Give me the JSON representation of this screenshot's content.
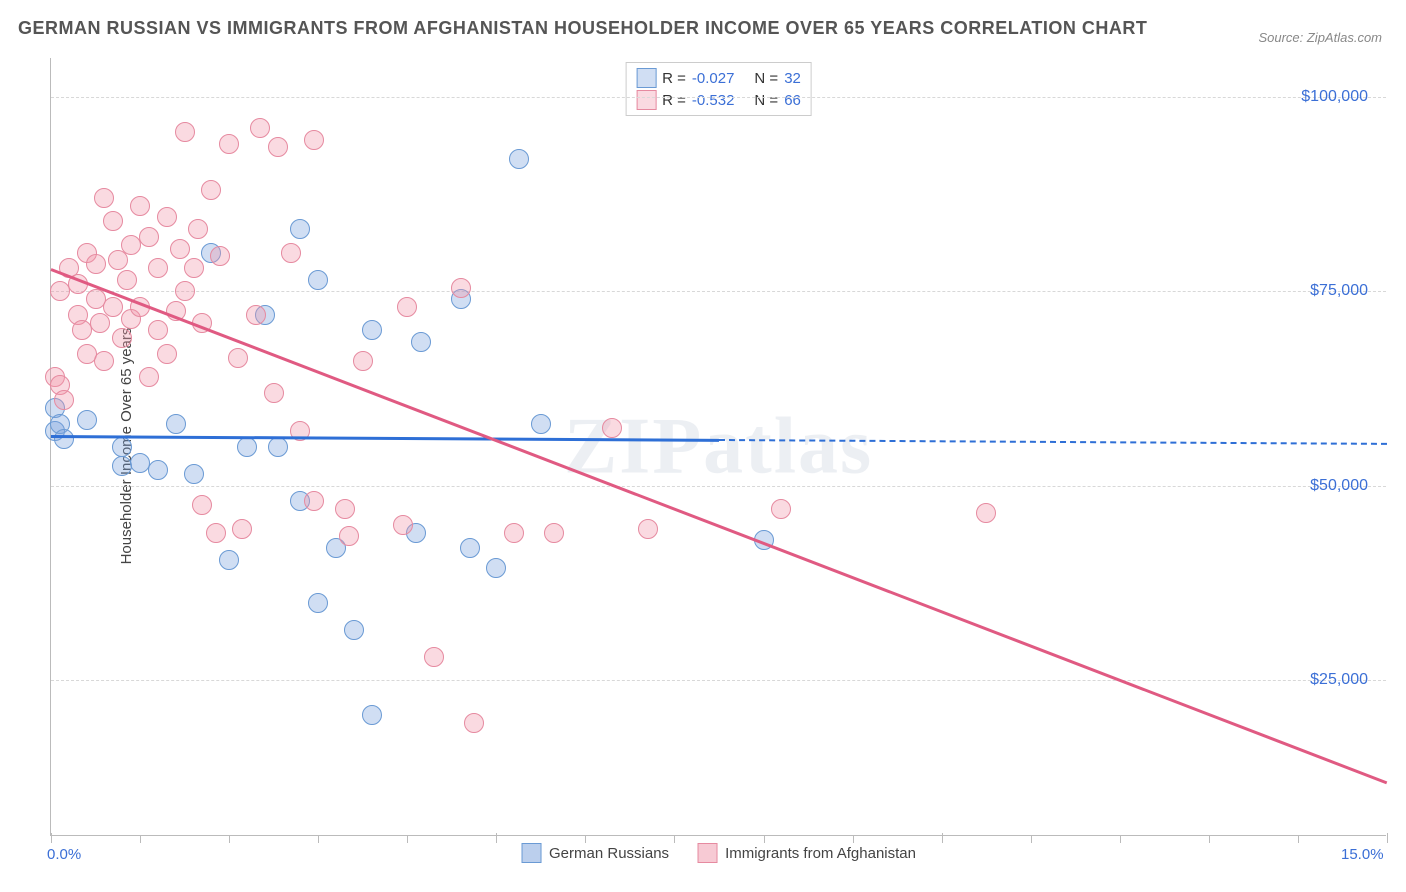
{
  "title": "GERMAN RUSSIAN VS IMMIGRANTS FROM AFGHANISTAN HOUSEHOLDER INCOME OVER 65 YEARS CORRELATION CHART",
  "source": "Source: ZipAtlas.com",
  "ylabel": "Householder Income Over 65 years",
  "watermark": "ZIPatlas",
  "chart": {
    "type": "scatter",
    "xlim": [
      0,
      15
    ],
    "ylim": [
      5000,
      105000
    ],
    "x_unit": "%",
    "y_unit": "$",
    "yticks": [
      25000,
      50000,
      75000,
      100000
    ],
    "ytick_labels": [
      "$25,000",
      "$50,000",
      "$75,000",
      "$100,000"
    ],
    "xticks": [
      0,
      5,
      10,
      15
    ],
    "xtick_labels": [
      "0.0%",
      "",
      "",
      "15.0%"
    ],
    "xtick_minor": [
      1,
      2,
      3,
      4,
      6,
      7,
      8,
      9,
      11,
      12,
      13,
      14
    ],
    "grid_color": "#d8d8d8",
    "background_color": "#ffffff",
    "axis_color": "#bbbbbb",
    "tick_label_color": "#3b6fd6",
    "point_radius": 10,
    "series": [
      {
        "name": "German Russians",
        "fill": "rgba(120,160,220,0.35)",
        "stroke": "#6a9ad4",
        "trend_color": "#2e6fd6",
        "R": "-0.027",
        "N": "32",
        "trend": {
          "x1": 0,
          "y1": 56500,
          "x2": 7.5,
          "y2": 56000,
          "dash_x2": 15,
          "dash_y2": 55500
        },
        "points": [
          [
            0.05,
            60000
          ],
          [
            0.05,
            57000
          ],
          [
            0.1,
            58000
          ],
          [
            0.15,
            56000
          ],
          [
            0.4,
            58500
          ],
          [
            0.8,
            55000
          ],
          [
            0.8,
            52500
          ],
          [
            1.0,
            53000
          ],
          [
            1.2,
            52000
          ],
          [
            1.4,
            58000
          ],
          [
            1.6,
            51500
          ],
          [
            1.8,
            80000
          ],
          [
            2.0,
            40500
          ],
          [
            2.2,
            55000
          ],
          [
            2.4,
            72000
          ],
          [
            2.55,
            55000
          ],
          [
            2.8,
            83000
          ],
          [
            2.8,
            48000
          ],
          [
            3.0,
            76500
          ],
          [
            3.0,
            35000
          ],
          [
            3.2,
            42000
          ],
          [
            3.4,
            31500
          ],
          [
            3.6,
            70000
          ],
          [
            3.6,
            20500
          ],
          [
            4.1,
            44000
          ],
          [
            4.15,
            68500
          ],
          [
            4.6,
            74000
          ],
          [
            4.7,
            42000
          ],
          [
            5.0,
            39500
          ],
          [
            5.25,
            92000
          ],
          [
            5.5,
            58000
          ],
          [
            8.0,
            43000
          ]
        ]
      },
      {
        "name": "Immigrants from Afghanistan",
        "fill": "rgba(240,150,170,0.35)",
        "stroke": "#e68aa0",
        "trend_color": "#e05a82",
        "R": "-0.532",
        "N": "66",
        "trend": {
          "x1": 0,
          "y1": 78000,
          "x2": 15,
          "y2": 12000
        },
        "points": [
          [
            0.05,
            64000
          ],
          [
            0.1,
            63000
          ],
          [
            0.1,
            75000
          ],
          [
            0.15,
            61000
          ],
          [
            0.2,
            78000
          ],
          [
            0.3,
            76000
          ],
          [
            0.3,
            72000
          ],
          [
            0.35,
            70000
          ],
          [
            0.4,
            67000
          ],
          [
            0.4,
            80000
          ],
          [
            0.5,
            74000
          ],
          [
            0.5,
            78500
          ],
          [
            0.55,
            71000
          ],
          [
            0.6,
            87000
          ],
          [
            0.6,
            66000
          ],
          [
            0.7,
            84000
          ],
          [
            0.7,
            73000
          ],
          [
            0.75,
            79000
          ],
          [
            0.8,
            69000
          ],
          [
            0.85,
            76500
          ],
          [
            0.9,
            81000
          ],
          [
            0.9,
            71500
          ],
          [
            1.0,
            86000
          ],
          [
            1.0,
            73000
          ],
          [
            1.1,
            82000
          ],
          [
            1.1,
            64000
          ],
          [
            1.2,
            78000
          ],
          [
            1.2,
            70000
          ],
          [
            1.3,
            84500
          ],
          [
            1.3,
            67000
          ],
          [
            1.4,
            72500
          ],
          [
            1.45,
            80500
          ],
          [
            1.5,
            95500
          ],
          [
            1.5,
            75000
          ],
          [
            1.6,
            78000
          ],
          [
            1.65,
            83000
          ],
          [
            1.7,
            47500
          ],
          [
            1.7,
            71000
          ],
          [
            1.8,
            88000
          ],
          [
            1.85,
            44000
          ],
          [
            1.9,
            79500
          ],
          [
            2.0,
            94000
          ],
          [
            2.1,
            66500
          ],
          [
            2.15,
            44500
          ],
          [
            2.3,
            72000
          ],
          [
            2.35,
            96000
          ],
          [
            2.5,
            62000
          ],
          [
            2.55,
            93500
          ],
          [
            2.7,
            80000
          ],
          [
            2.8,
            57000
          ],
          [
            2.95,
            48000
          ],
          [
            2.95,
            94500
          ],
          [
            3.3,
            47000
          ],
          [
            3.35,
            43500
          ],
          [
            3.5,
            66000
          ],
          [
            3.95,
            45000
          ],
          [
            4.0,
            73000
          ],
          [
            4.3,
            28000
          ],
          [
            4.6,
            75500
          ],
          [
            4.75,
            19500
          ],
          [
            5.2,
            44000
          ],
          [
            5.65,
            44000
          ],
          [
            6.3,
            57500
          ],
          [
            6.7,
            44500
          ],
          [
            8.2,
            47000
          ],
          [
            10.5,
            46500
          ]
        ]
      }
    ]
  },
  "bottom_legend": [
    {
      "label": "German Russians",
      "fill": "rgba(120,160,220,0.5)",
      "stroke": "#6a9ad4"
    },
    {
      "label": "Immigrants from Afghanistan",
      "fill": "rgba(240,150,170,0.5)",
      "stroke": "#e68aa0"
    }
  ]
}
